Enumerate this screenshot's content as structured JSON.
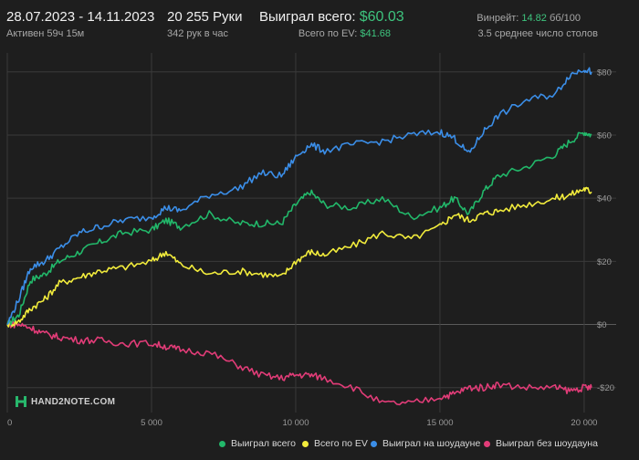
{
  "header": {
    "date_range": "28.07.2023 - 14.11.2023",
    "active_time": "Активен 59ч 15м",
    "hands": "20 255 Руки",
    "hands_per_hour": "342 рук в час",
    "won_total_label": "Выиграл всего:",
    "won_total_value": "$60.03",
    "ev_total_label": "Всего по EV:",
    "ev_total_value": "$41.68",
    "winrate_label": "Винрейт:",
    "winrate_value": "14.82",
    "winrate_unit": "бб/100",
    "avg_tables": "3.5 среднее число столов"
  },
  "logo": {
    "text": "HAND2NOTE.COM"
  },
  "colors": {
    "background": "#1e1e1e",
    "grid": "#3a3a3a",
    "won_total": "#22b86a",
    "ev_total": "#f2ec3c",
    "showdown": "#3b8ee8",
    "non_showdown": "#e23c78"
  },
  "chart_data": {
    "type": "line",
    "x_range": [
      0,
      20255
    ],
    "y_range": [
      -25,
      86
    ],
    "grid": true,
    "legend_position": "bottom",
    "x_ticks": [
      {
        "value": 0,
        "label": "0"
      },
      {
        "value": 5000,
        "label": "5 000"
      },
      {
        "value": 10000,
        "label": "10 000"
      },
      {
        "value": 15000,
        "label": "15 000"
      },
      {
        "value": 20000,
        "label": "20 000"
      }
    ],
    "y_ticks": [
      {
        "value": 80,
        "label": "$80"
      },
      {
        "value": 60,
        "label": "$60"
      },
      {
        "value": 40,
        "label": "$40"
      },
      {
        "value": 20,
        "label": "$20"
      },
      {
        "value": 0,
        "label": "$0"
      },
      {
        "value": -20,
        "label": "-$20"
      }
    ],
    "series": [
      {
        "name": "Выиграл всего",
        "color_key": "won_total",
        "x": [
          0,
          400,
          800,
          1300,
          1800,
          2500,
          3200,
          4000,
          5000,
          5500,
          6000,
          7000,
          8000,
          8800,
          9500,
          10000,
          10500,
          11000,
          12000,
          13000,
          14000,
          15000,
          15500,
          16000,
          16500,
          17000,
          18000,
          19000,
          19500,
          20000,
          20255
        ],
        "y": [
          0,
          3,
          14,
          16,
          20,
          23,
          26,
          29,
          30,
          33,
          31,
          35,
          32,
          32,
          32,
          38,
          42,
          38,
          37,
          40,
          34,
          37,
          40,
          35,
          42,
          47,
          50,
          54,
          58,
          61,
          60
        ]
      },
      {
        "name": "Всего по EV",
        "color_key": "ev_total",
        "x": [
          0,
          400,
          800,
          1300,
          1800,
          2500,
          3200,
          4000,
          5000,
          5500,
          6000,
          7000,
          8000,
          8800,
          9500,
          10000,
          10500,
          11000,
          12000,
          13000,
          14000,
          15000,
          15500,
          16000,
          16500,
          17000,
          18000,
          19000,
          19500,
          20000,
          20255
        ],
        "y": [
          0,
          1,
          5,
          8,
          13,
          15,
          17,
          18,
          20,
          23,
          19,
          16,
          17,
          16,
          15,
          20,
          23,
          22,
          25,
          29,
          27,
          31,
          35,
          33,
          35,
          36,
          38,
          40,
          41,
          43,
          42
        ]
      },
      {
        "name": "Выиграл на шоудауне",
        "color_key": "showdown",
        "x": [
          0,
          400,
          800,
          1300,
          1800,
          2500,
          3200,
          4000,
          5000,
          5500,
          6000,
          7000,
          8000,
          8800,
          9500,
          10000,
          10500,
          11000,
          12000,
          13000,
          14000,
          15000,
          15500,
          16000,
          16500,
          17000,
          18000,
          19000,
          19500,
          20000,
          20255
        ],
        "y": [
          0,
          8,
          18,
          20,
          24,
          29,
          31,
          33,
          34,
          37,
          36,
          41,
          43,
          48,
          47,
          53,
          57,
          55,
          57,
          58,
          60,
          61,
          59,
          54,
          61,
          66,
          71,
          73,
          79,
          81,
          80
        ]
      },
      {
        "name": "Выиграл без шоудауна",
        "color_key": "non_showdown",
        "x": [
          0,
          400,
          800,
          1300,
          1800,
          2500,
          3200,
          4000,
          5000,
          5500,
          6000,
          7000,
          8000,
          8800,
          9500,
          10000,
          10500,
          11000,
          12000,
          13000,
          14000,
          15000,
          15500,
          16000,
          16500,
          17000,
          18000,
          19000,
          19500,
          20000,
          20255
        ],
        "y": [
          0,
          0,
          -1,
          -3,
          -4,
          -5,
          -5,
          -6,
          -6,
          -7,
          -8,
          -9,
          -13,
          -16,
          -17,
          -16,
          -16,
          -17,
          -20,
          -25,
          -25,
          -23,
          -22,
          -20,
          -20,
          -19,
          -20,
          -20,
          -21,
          -20,
          -20
        ]
      }
    ]
  }
}
